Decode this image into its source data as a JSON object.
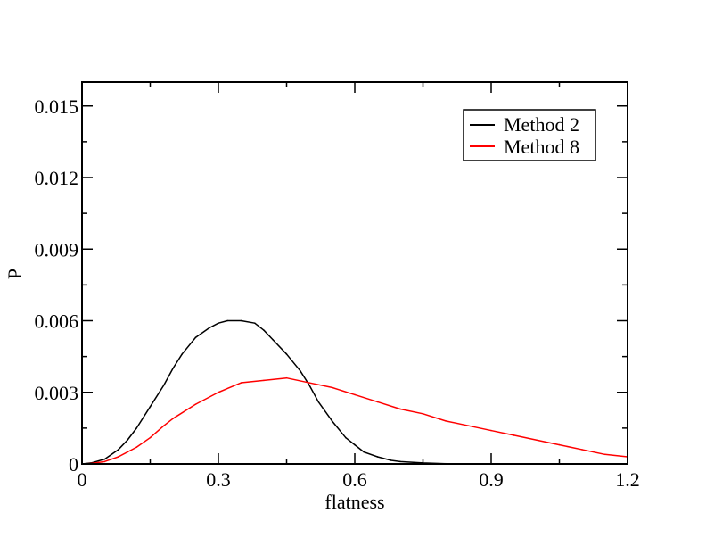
{
  "chart_data": {
    "type": "line",
    "xlabel": "flatness",
    "ylabel": "P",
    "xlim": [
      0,
      1.2
    ],
    "ylim": [
      0,
      0.016
    ],
    "x_ticks": [
      0,
      0.3,
      0.6,
      0.9,
      1.2
    ],
    "x_tick_labels": [
      "0",
      "0.3",
      "0.6",
      "0.9",
      "1.2"
    ],
    "y_ticks": [
      0,
      0.003,
      0.006,
      0.009,
      0.012,
      0.015
    ],
    "y_tick_labels": [
      "0",
      "0.003",
      "0.006",
      "0.009",
      "0.012",
      "0.015"
    ],
    "grid": false,
    "legend_position": "top-right",
    "series": [
      {
        "name": "Method 2",
        "color": "#000000",
        "x": [
          0,
          0.02,
          0.05,
          0.08,
          0.1,
          0.12,
          0.15,
          0.18,
          0.2,
          0.22,
          0.25,
          0.28,
          0.3,
          0.32,
          0.35,
          0.38,
          0.4,
          0.42,
          0.45,
          0.48,
          0.5,
          0.52,
          0.55,
          0.58,
          0.6,
          0.62,
          0.65,
          0.68,
          0.7,
          0.75,
          0.8,
          0.85
        ],
        "y": [
          0,
          4e-05,
          0.0002,
          0.0006,
          0.001,
          0.0015,
          0.0024,
          0.0033,
          0.004,
          0.0046,
          0.0053,
          0.0057,
          0.0059,
          0.006,
          0.006,
          0.0059,
          0.0056,
          0.0052,
          0.0046,
          0.0039,
          0.0033,
          0.0026,
          0.0018,
          0.0011,
          0.0008,
          0.0005,
          0.0003,
          0.00015,
          0.0001,
          4e-05,
          1e-05,
          0
        ]
      },
      {
        "name": "Method 8",
        "color": "#ff0000",
        "x": [
          0,
          0.02,
          0.05,
          0.08,
          0.1,
          0.12,
          0.15,
          0.18,
          0.2,
          0.25,
          0.3,
          0.35,
          0.4,
          0.45,
          0.5,
          0.55,
          0.6,
          0.65,
          0.7,
          0.75,
          0.8,
          0.85,
          0.9,
          0.95,
          1.0,
          1.05,
          1.1,
          1.15,
          1.2
        ],
        "y": [
          0,
          2e-05,
          0.0001,
          0.0003,
          0.0005,
          0.0007,
          0.0011,
          0.0016,
          0.0019,
          0.0025,
          0.003,
          0.0034,
          0.0035,
          0.0036,
          0.0034,
          0.0032,
          0.0029,
          0.0026,
          0.0023,
          0.0021,
          0.0018,
          0.0016,
          0.0014,
          0.0012,
          0.001,
          0.0008,
          0.0006,
          0.0004,
          0.0003
        ]
      }
    ]
  }
}
